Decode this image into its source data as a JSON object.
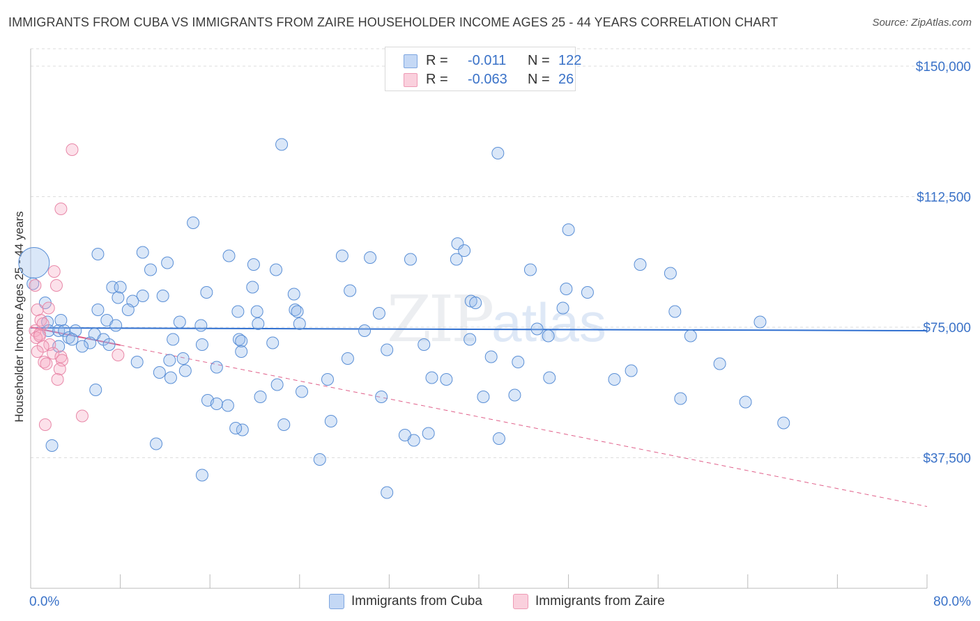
{
  "header": {
    "title": "IMMIGRANTS FROM CUBA VS IMMIGRANTS FROM ZAIRE HOUSEHOLDER INCOME AGES 25 - 44 YEARS CORRELATION CHART",
    "source": "Source: ZipAtlas.com"
  },
  "watermark": {
    "zip": "ZIP",
    "atlas": "atlas"
  },
  "legend": {
    "cuba": {
      "r_label": "R =",
      "r_value": "-0.011",
      "n_label": "N =",
      "n_value": "122",
      "color": "#a9c6f0"
    },
    "zaire": {
      "r_label": "R =",
      "r_value": "-0.063",
      "n_label": "N =",
      "n_value": "26",
      "color": "#f6b8cb"
    }
  },
  "bottom_legend": {
    "cuba": "Immigrants from Cuba",
    "zaire": "Immigrants from Zaire"
  },
  "colors": {
    "cuba_fill": "rgba(150,185,235,0.35)",
    "cuba_stroke": "#5a8fd6",
    "cuba_line": "#2f6fd0",
    "zaire_fill": "rgba(245,170,195,0.35)",
    "zaire_stroke": "#e888a8",
    "zaire_line": "#e0608a",
    "tick_text": "#3a72c8",
    "grid": "#dcdcdc"
  },
  "chart_data": {
    "type": "scatter",
    "title": "IMMIGRANTS FROM CUBA VS IMMIGRANTS FROM ZAIRE HOUSEHOLDER INCOME AGES 25 - 44 YEARS CORRELATION CHART",
    "ylabel": "Householder Income Ages 25 - 44 years",
    "xlabel": "",
    "xlim": [
      0,
      80
    ],
    "ylim": [
      0,
      157000
    ],
    "x_tick_labels": [
      "0.0%",
      "80.0%"
    ],
    "y_ticks": [
      {
        "value": 37500,
        "label": "$37,500"
      },
      {
        "value": 75000,
        "label": "$75,000"
      },
      {
        "value": 112500,
        "label": "$112,500"
      },
      {
        "value": 150000,
        "label": "$150,000"
      }
    ],
    "grid": "horizontal dashed",
    "legend_position": "top-center",
    "series": [
      {
        "name": "Immigrants from Cuba",
        "color": "#5a8fd6",
        "trend": {
          "x": [
            0,
            80
          ],
          "y": [
            74800,
            74000
          ],
          "style": "solid"
        },
        "big_points": [
          {
            "x": 0.3,
            "y": 93500
          }
        ],
        "points": [
          [
            22.4,
            127500
          ],
          [
            41.7,
            125000
          ],
          [
            14.5,
            105000
          ],
          [
            48,
            103000
          ],
          [
            38.1,
            99000
          ],
          [
            38.7,
            97000
          ],
          [
            6,
            96000
          ],
          [
            10,
            96500
          ],
          [
            17.7,
            95500
          ],
          [
            27.8,
            95500
          ],
          [
            30.3,
            95000
          ],
          [
            33.9,
            94500
          ],
          [
            38,
            94500
          ],
          [
            12.2,
            93500
          ],
          [
            19.9,
            93000
          ],
          [
            10.7,
            91500
          ],
          [
            21.9,
            91500
          ],
          [
            44.6,
            91500
          ],
          [
            54.4,
            93000
          ],
          [
            57.1,
            90500
          ],
          [
            0.2,
            87500
          ],
          [
            7.3,
            86500
          ],
          [
            8,
            86500
          ],
          [
            19.8,
            86500
          ],
          [
            47.8,
            86000
          ],
          [
            28.5,
            85500
          ],
          [
            49.7,
            85000
          ],
          [
            15.7,
            85000
          ],
          [
            10,
            84000
          ],
          [
            7.8,
            83500
          ],
          [
            23.5,
            84500
          ],
          [
            11.8,
            84000
          ],
          [
            9.1,
            82500
          ],
          [
            1.3,
            82000
          ],
          [
            39.3,
            82500
          ],
          [
            39.7,
            82000
          ],
          [
            6,
            80000
          ],
          [
            8.7,
            80000
          ],
          [
            23.6,
            80000
          ],
          [
            18.5,
            79500
          ],
          [
            23.8,
            79500
          ],
          [
            20.2,
            79500
          ],
          [
            57.5,
            79500
          ],
          [
            31.1,
            79000
          ],
          [
            47.5,
            80500
          ],
          [
            13.3,
            76500
          ],
          [
            1.5,
            76500
          ],
          [
            2.7,
            77000
          ],
          [
            6.8,
            77000
          ],
          [
            24,
            76000
          ],
          [
            20.3,
            76000
          ],
          [
            15.2,
            75500
          ],
          [
            7.6,
            75500
          ],
          [
            45.2,
            74500
          ],
          [
            65.1,
            76500
          ],
          [
            4,
            74000
          ],
          [
            1.6,
            74000
          ],
          [
            2.5,
            74000
          ],
          [
            3,
            74000
          ],
          [
            5.7,
            73000
          ],
          [
            29.8,
            74000
          ],
          [
            39.2,
            71500
          ],
          [
            46.2,
            72500
          ],
          [
            3.4,
            72000
          ],
          [
            3.7,
            71500
          ],
          [
            6.5,
            71500
          ],
          [
            18.6,
            71500
          ],
          [
            12.7,
            71500
          ],
          [
            18.8,
            71000
          ],
          [
            15.3,
            70000
          ],
          [
            5.3,
            70500
          ],
          [
            7,
            70000
          ],
          [
            2.5,
            69500
          ],
          [
            4.6,
            69500
          ],
          [
            21.6,
            70500
          ],
          [
            35.1,
            70000
          ],
          [
            31.8,
            68500
          ],
          [
            28.3,
            66000
          ],
          [
            18.8,
            68000
          ],
          [
            13.6,
            66000
          ],
          [
            12.4,
            65500
          ],
          [
            16.6,
            63500
          ],
          [
            13.8,
            62500
          ],
          [
            9.5,
            65000
          ],
          [
            41.1,
            66500
          ],
          [
            43.5,
            65000
          ],
          [
            11.5,
            62000
          ],
          [
            12.5,
            60500
          ],
          [
            37.1,
            60000
          ],
          [
            35.8,
            60500
          ],
          [
            26.5,
            60000
          ],
          [
            46.3,
            60500
          ],
          [
            22,
            58500
          ],
          [
            24.2,
            56500
          ],
          [
            5.8,
            57000
          ],
          [
            20.5,
            55000
          ],
          [
            15.8,
            54000
          ],
          [
            16.6,
            53000
          ],
          [
            17.6,
            52500
          ],
          [
            31.3,
            55000
          ],
          [
            58,
            54500
          ],
          [
            67.2,
            47500
          ],
          [
            22.6,
            47000
          ],
          [
            18.9,
            45500
          ],
          [
            11.2,
            41500
          ],
          [
            34.2,
            42500
          ],
          [
            1.9,
            41000
          ],
          [
            41.8,
            43000
          ],
          [
            35.5,
            44500
          ],
          [
            33.4,
            44000
          ],
          [
            26.8,
            48000
          ],
          [
            18.3,
            46000
          ],
          [
            25.8,
            37000
          ],
          [
            15.3,
            32500
          ],
          [
            31.8,
            27500
          ],
          [
            61.5,
            64500
          ],
          [
            63.8,
            53500
          ],
          [
            40.4,
            55000
          ],
          [
            43.2,
            55500
          ],
          [
            52.1,
            60000
          ],
          [
            53.6,
            62500
          ],
          [
            58.9,
            72500
          ]
        ]
      },
      {
        "name": "Immigrants from Zaire",
        "color": "#e888a8",
        "trend": {
          "x": [
            0,
            80
          ],
          "y": [
            75000,
            23500
          ],
          "solid_until_x": 8,
          "style": "solid-then-dashed"
        },
        "points": [
          [
            3.7,
            126000
          ],
          [
            2.7,
            109000
          ],
          [
            2.1,
            91000
          ],
          [
            2.3,
            87000
          ],
          [
            0.4,
            87000
          ],
          [
            1.6,
            80500
          ],
          [
            0.6,
            80000
          ],
          [
            0.9,
            77000
          ],
          [
            1.1,
            76000
          ],
          [
            0.4,
            74000
          ],
          [
            0.8,
            73000
          ],
          [
            0.5,
            72000
          ],
          [
            0.8,
            72500
          ],
          [
            1.7,
            70000
          ],
          [
            1.1,
            69500
          ],
          [
            0.6,
            68000
          ],
          [
            2,
            67500
          ],
          [
            7.8,
            67000
          ],
          [
            2.7,
            66500
          ],
          [
            2.8,
            65500
          ],
          [
            1.2,
            65000
          ],
          [
            1.4,
            64500
          ],
          [
            2.6,
            63000
          ],
          [
            2.4,
            60000
          ],
          [
            1.3,
            47000
          ],
          [
            4.6,
            49500
          ]
        ]
      }
    ]
  }
}
